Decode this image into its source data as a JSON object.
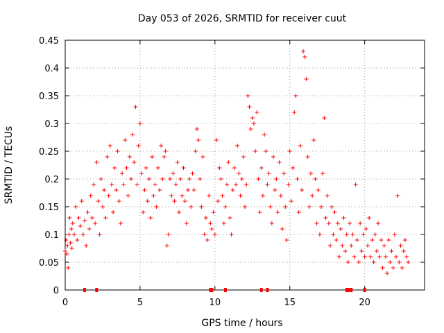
{
  "chart_data": {
    "type": "scatter",
    "title": "Day 053 of 2026, SRMTID for receiver cuut",
    "xlabel": "GPS time / hours",
    "ylabel": "SRMTID / TECUs",
    "xlim": [
      0,
      24
    ],
    "ylim": [
      0,
      0.45
    ],
    "x_ticks": [
      0,
      5,
      10,
      15,
      20
    ],
    "x_tick_labels": [
      "0",
      "5",
      "10",
      "15",
      "20"
    ],
    "y_ticks": [
      0,
      0.05,
      0.1,
      0.15,
      0.2,
      0.25,
      0.3,
      0.35,
      0.4,
      0.45
    ],
    "y_tick_labels": [
      "0",
      "0.05",
      "0.1",
      "0.15",
      "0.2",
      "0.25",
      "0.3",
      "0.35",
      "0.4",
      "0.45"
    ],
    "grid": true,
    "marker": "plus",
    "color": "#ff0000",
    "series": [
      {
        "name": "SRMTID",
        "points": [
          [
            0.0,
            0.07
          ],
          [
            0.05,
            0.09
          ],
          [
            0.1,
            0.065
          ],
          [
            0.15,
            0.08
          ],
          [
            0.2,
            0.04
          ],
          [
            0.25,
            0.1
          ],
          [
            0.3,
            0.13
          ],
          [
            0.35,
            0.085
          ],
          [
            0.4,
            0.11
          ],
          [
            0.45,
            0.075
          ],
          [
            0.5,
            0.12
          ],
          [
            0.6,
            0.1
          ],
          [
            0.7,
            0.15
          ],
          [
            0.8,
            0.09
          ],
          [
            0.9,
            0.13
          ],
          [
            1.0,
            0.115
          ],
          [
            1.1,
            0.16
          ],
          [
            1.2,
            0.1
          ],
          [
            1.3,
            0.125
          ],
          [
            1.4,
            0.08
          ],
          [
            1.5,
            0.14
          ],
          [
            1.6,
            0.11
          ],
          [
            1.7,
            0.17
          ],
          [
            1.8,
            0.13
          ],
          [
            1.9,
            0.19
          ],
          [
            2.0,
            0.12
          ],
          [
            2.1,
            0.23
          ],
          [
            2.2,
            0.16
          ],
          [
            2.3,
            0.1
          ],
          [
            2.4,
            0.2
          ],
          [
            2.5,
            0.15
          ],
          [
            2.6,
            0.18
          ],
          [
            2.7,
            0.13
          ],
          [
            2.8,
            0.24
          ],
          [
            2.9,
            0.17
          ],
          [
            3.0,
            0.26
          ],
          [
            3.1,
            0.19
          ],
          [
            3.2,
            0.14
          ],
          [
            3.3,
            0.22
          ],
          [
            3.4,
            0.18
          ],
          [
            3.5,
            0.25
          ],
          [
            3.6,
            0.16
          ],
          [
            3.7,
            0.12
          ],
          [
            3.8,
            0.21
          ],
          [
            3.9,
            0.19
          ],
          [
            4.0,
            0.27
          ],
          [
            4.1,
            0.22
          ],
          [
            4.2,
            0.17
          ],
          [
            4.3,
            0.24
          ],
          [
            4.4,
            0.2
          ],
          [
            4.5,
            0.28
          ],
          [
            4.6,
            0.23
          ],
          [
            4.7,
            0.33
          ],
          [
            4.8,
            0.19
          ],
          [
            4.9,
            0.26
          ],
          [
            5.0,
            0.3
          ],
          [
            5.1,
            0.21
          ],
          [
            5.2,
            0.14
          ],
          [
            5.3,
            0.18
          ],
          [
            5.4,
            0.22
          ],
          [
            5.5,
            0.16
          ],
          [
            5.6,
            0.2
          ],
          [
            5.7,
            0.13
          ],
          [
            5.8,
            0.24
          ],
          [
            5.9,
            0.17
          ],
          [
            6.0,
            0.19
          ],
          [
            6.1,
            0.15
          ],
          [
            6.2,
            0.22
          ],
          [
            6.3,
            0.18
          ],
          [
            6.4,
            0.26
          ],
          [
            6.5,
            0.2
          ],
          [
            6.6,
            0.24
          ],
          [
            6.7,
            0.25
          ],
          [
            6.8,
            0.08
          ],
          [
            6.9,
            0.1
          ],
          [
            7.0,
            0.2
          ],
          [
            7.1,
            0.17
          ],
          [
            7.2,
            0.21
          ],
          [
            7.3,
            0.16
          ],
          [
            7.4,
            0.19
          ],
          [
            7.5,
            0.23
          ],
          [
            7.6,
            0.14
          ],
          [
            7.7,
            0.2
          ],
          [
            7.8,
            0.17
          ],
          [
            7.9,
            0.22
          ],
          [
            8.0,
            0.16
          ],
          [
            8.1,
            0.12
          ],
          [
            8.2,
            0.18
          ],
          [
            8.3,
            0.2
          ],
          [
            8.4,
            0.15
          ],
          [
            8.5,
            0.21
          ],
          [
            8.6,
            0.18
          ],
          [
            8.7,
            0.25
          ],
          [
            8.8,
            0.29
          ],
          [
            8.9,
            0.27
          ],
          [
            9.0,
            0.2
          ],
          [
            9.1,
            0.15
          ],
          [
            9.2,
            0.24
          ],
          [
            9.3,
            0.1
          ],
          [
            9.4,
            0.13
          ],
          [
            9.5,
            0.09
          ],
          [
            9.6,
            0.17
          ],
          [
            9.7,
            0.12
          ],
          [
            9.8,
            0.11
          ],
          [
            9.9,
            0.14
          ],
          [
            10.0,
            0.1
          ],
          [
            10.1,
            0.27
          ],
          [
            10.2,
            0.16
          ],
          [
            10.3,
            0.22
          ],
          [
            10.4,
            0.2
          ],
          [
            10.5,
            0.17
          ],
          [
            10.6,
            0.12
          ],
          [
            10.7,
            0.15
          ],
          [
            10.8,
            0.19
          ],
          [
            10.9,
            0.23
          ],
          [
            11.0,
            0.13
          ],
          [
            11.1,
            0.1
          ],
          [
            11.2,
            0.18
          ],
          [
            11.3,
            0.22
          ],
          [
            11.4,
            0.19
          ],
          [
            11.5,
            0.26
          ],
          [
            11.6,
            0.21
          ],
          [
            11.7,
            0.17
          ],
          [
            11.8,
            0.2
          ],
          [
            11.9,
            0.24
          ],
          [
            12.0,
            0.15
          ],
          [
            12.1,
            0.19
          ],
          [
            12.2,
            0.35
          ],
          [
            12.3,
            0.33
          ],
          [
            12.4,
            0.29
          ],
          [
            12.5,
            0.31
          ],
          [
            12.6,
            0.3
          ],
          [
            12.7,
            0.25
          ],
          [
            12.8,
            0.32
          ],
          [
            12.9,
            0.2
          ],
          [
            13.0,
            0.14
          ],
          [
            13.1,
            0.22
          ],
          [
            13.2,
            0.17
          ],
          [
            13.3,
            0.28
          ],
          [
            13.4,
            0.25
          ],
          [
            13.5,
            0.19
          ],
          [
            13.6,
            0.21
          ],
          [
            13.7,
            0.15
          ],
          [
            13.8,
            0.12
          ],
          [
            13.9,
            0.24
          ],
          [
            14.0,
            0.18
          ],
          [
            14.1,
            0.2
          ],
          [
            14.2,
            0.14
          ],
          [
            14.3,
            0.23
          ],
          [
            14.4,
            0.17
          ],
          [
            14.5,
            0.11
          ],
          [
            14.6,
            0.21
          ],
          [
            14.7,
            0.15
          ],
          [
            14.8,
            0.09
          ],
          [
            14.9,
            0.19
          ],
          [
            15.0,
            0.25
          ],
          [
            15.1,
            0.16
          ],
          [
            15.2,
            0.22
          ],
          [
            15.3,
            0.32
          ],
          [
            15.4,
            0.35
          ],
          [
            15.5,
            0.2
          ],
          [
            15.6,
            0.14
          ],
          [
            15.7,
            0.26
          ],
          [
            15.8,
            0.18
          ],
          [
            15.9,
            0.43
          ],
          [
            16.0,
            0.42
          ],
          [
            16.1,
            0.38
          ],
          [
            16.2,
            0.24
          ],
          [
            16.3,
            0.15
          ],
          [
            16.4,
            0.21
          ],
          [
            16.5,
            0.17
          ],
          [
            16.6,
            0.27
          ],
          [
            16.7,
            0.2
          ],
          [
            16.8,
            0.12
          ],
          [
            16.9,
            0.18
          ],
          [
            17.0,
            0.1
          ],
          [
            17.1,
            0.15
          ],
          [
            17.2,
            0.21
          ],
          [
            17.3,
            0.31
          ],
          [
            17.4,
            0.13
          ],
          [
            17.5,
            0.17
          ],
          [
            17.6,
            0.12
          ],
          [
            17.7,
            0.08
          ],
          [
            17.8,
            0.15
          ],
          [
            17.9,
            0.1
          ],
          [
            18.0,
            0.14
          ],
          [
            18.1,
            0.09
          ],
          [
            18.2,
            0.12
          ],
          [
            18.3,
            0.06
          ],
          [
            18.4,
            0.11
          ],
          [
            18.5,
            0.08
          ],
          [
            18.6,
            0.13
          ],
          [
            18.7,
            0.07
          ],
          [
            18.8,
            0.1
          ],
          [
            18.9,
            0.05
          ],
          [
            19.0,
            0.12
          ],
          [
            19.1,
            0.08
          ],
          [
            19.2,
            0.1
          ],
          [
            19.3,
            0.06
          ],
          [
            19.4,
            0.19
          ],
          [
            19.5,
            0.09
          ],
          [
            19.6,
            0.05
          ],
          [
            19.7,
            0.12
          ],
          [
            19.8,
            0.07
          ],
          [
            19.9,
            0.1
          ],
          [
            20.0,
            0.06
          ],
          [
            20.1,
            0.11
          ],
          [
            20.2,
            0.08
          ],
          [
            20.3,
            0.13
          ],
          [
            20.4,
            0.06
          ],
          [
            20.5,
            0.09
          ],
          [
            20.6,
            0.05
          ],
          [
            20.7,
            0.1
          ],
          [
            20.8,
            0.07
          ],
          [
            20.9,
            0.12
          ],
          [
            21.0,
            0.06
          ],
          [
            21.1,
            0.09
          ],
          [
            21.2,
            0.04
          ],
          [
            21.3,
            0.08
          ],
          [
            21.4,
            0.06
          ],
          [
            21.5,
            0.03
          ],
          [
            21.6,
            0.09
          ],
          [
            21.7,
            0.05
          ],
          [
            21.8,
            0.07
          ],
          [
            21.9,
            0.04
          ],
          [
            22.0,
            0.1
          ],
          [
            22.1,
            0.06
          ],
          [
            22.2,
            0.17
          ],
          [
            22.3,
            0.05
          ],
          [
            22.4,
            0.08
          ],
          [
            22.5,
            0.04
          ],
          [
            22.6,
            0.07
          ],
          [
            22.7,
            0.09
          ],
          [
            22.8,
            0.06
          ],
          [
            22.9,
            0.05
          ]
        ]
      }
    ],
    "gap_markers_x": [
      1.3,
      2.1,
      9.7,
      9.8,
      10.7,
      13.1,
      13.5,
      18.8,
      18.9,
      19.1,
      20.0
    ]
  }
}
